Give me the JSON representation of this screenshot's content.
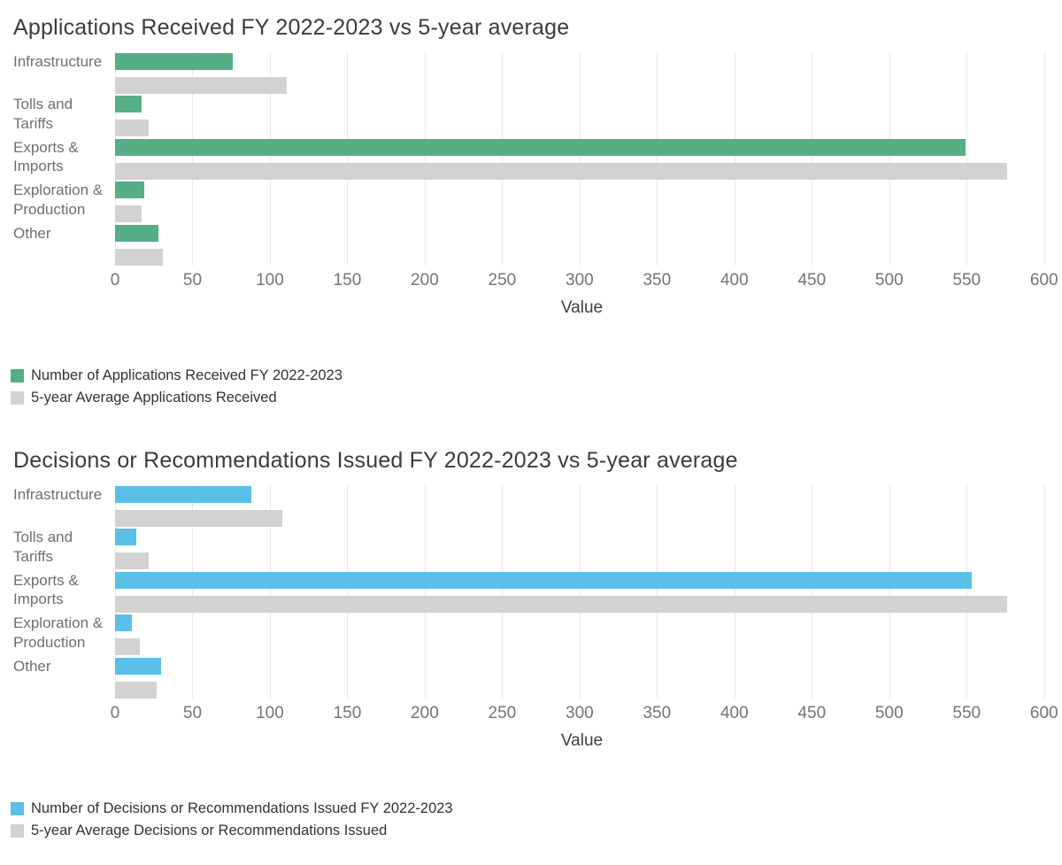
{
  "page": {
    "background": "#ffffff"
  },
  "colors": {
    "applications_series": "#55ae86",
    "decisions_series": "#5bc0e7",
    "average_series": "#d2d2d2",
    "gridline": "#e9e9e9",
    "title_text": "#3c3c3c",
    "axis_text": "#757575",
    "category_text": "#6f6f6f",
    "legend_text": "#333333"
  },
  "chart_data": [
    {
      "type": "bar",
      "orientation": "horizontal",
      "title": "Applications Received FY 2022-2023 vs 5-year average",
      "xlabel": "Value",
      "xlim": [
        0,
        603
      ],
      "xticks": [
        0,
        50,
        100,
        150,
        200,
        250,
        300,
        350,
        400,
        450,
        500,
        550,
        600
      ],
      "grid": true,
      "legend_position": "bottom-left",
      "categories": [
        "Infrastructure",
        "Tolls and\nTariffs",
        "Exports &\nImports",
        "Exploration &\nProduction",
        "Other"
      ],
      "series": [
        {
          "name": "Number of Applications Received FY 2022-2023",
          "color": "#55ae86",
          "values": [
            76,
            17,
            549,
            19,
            28
          ]
        },
        {
          "name": "5-year Average Applications Received",
          "color": "#d2d2d2",
          "values": [
            111,
            22,
            576,
            17,
            31
          ]
        }
      ]
    },
    {
      "type": "bar",
      "orientation": "horizontal",
      "title": "Decisions or Recommendations Issued FY 2022-2023 vs 5-year average",
      "xlabel": "Value",
      "xlim": [
        0,
        603
      ],
      "xticks": [
        0,
        50,
        100,
        150,
        200,
        250,
        300,
        350,
        400,
        450,
        500,
        550,
        600
      ],
      "grid": true,
      "legend_position": "bottom-left",
      "categories": [
        "Infrastructure",
        "Tolls and\nTariffs",
        "Exports &\nImports",
        "Exploration &\nProduction",
        "Other"
      ],
      "series": [
        {
          "name": "Number of Decisions or Recommendations Issued FY 2022-2023",
          "color": "#5bc0e7",
          "values": [
            88,
            14,
            553,
            11,
            30
          ]
        },
        {
          "name": "5-year Average Decisions or Recommendations Issued",
          "color": "#d2d2d2",
          "values": [
            108,
            22,
            576,
            16,
            27
          ]
        }
      ]
    }
  ]
}
